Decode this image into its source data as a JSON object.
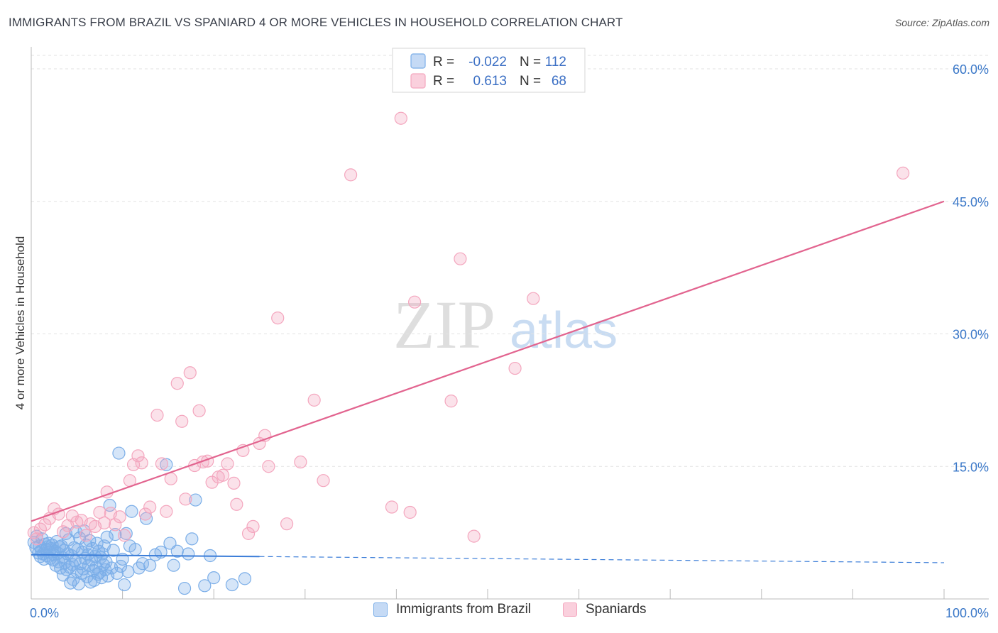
{
  "header": {
    "title": "IMMIGRANTS FROM BRAZIL VS SPANIARD 4 OR MORE VEHICLES IN HOUSEHOLD CORRELATION CHART",
    "source": "Source: ZipAtlas.com"
  },
  "watermark": {
    "zip": "ZIP",
    "atlas": "atlas"
  },
  "chart_data": {
    "type": "scatter",
    "ylabel": "4 or more Vehicles in Household",
    "xlim": [
      0,
      100
    ],
    "ylim": [
      0,
      65
    ],
    "x_tick_labels": [
      {
        "value": 0,
        "label": "0.0%"
      },
      {
        "value": 100,
        "label": "100.0%"
      }
    ],
    "y_tick_labels": [
      {
        "value": 15,
        "label": "15.0%"
      },
      {
        "value": 30,
        "label": "30.0%"
      },
      {
        "value": 45,
        "label": "45.0%"
      },
      {
        "value": 60,
        "label": "60.0%"
      }
    ],
    "legend": [
      {
        "r_label": "R =",
        "r_value": "-0.022",
        "n_label": "N =",
        "n_value": "112"
      },
      {
        "r_label": "R =",
        "r_value": "0.613",
        "n_label": "N =",
        "n_value": "68"
      }
    ],
    "series": [
      {
        "name": "Immigrants from Brazil",
        "color": "#7baee8",
        "line_color": "#3b7dd8",
        "trend": {
          "x0": 0,
          "y0": 5.0,
          "x1": 25,
          "y1": 4.8,
          "dash_x1": 100,
          "dash_y1": 4.1
        },
        "points": [
          [
            0.3,
            6.4
          ],
          [
            0.5,
            5.8
          ],
          [
            0.6,
            7.1
          ],
          [
            0.8,
            5.2
          ],
          [
            0.9,
            6.0
          ],
          [
            1.0,
            4.8
          ],
          [
            1.1,
            5.5
          ],
          [
            1.2,
            6.8
          ],
          [
            1.3,
            5.1
          ],
          [
            1.4,
            4.5
          ],
          [
            1.5,
            6.2
          ],
          [
            1.6,
            5.6
          ],
          [
            1.7,
            4.9
          ],
          [
            1.8,
            5.9
          ],
          [
            1.9,
            6.3
          ],
          [
            2.0,
            5.3
          ],
          [
            2.1,
            4.6
          ],
          [
            2.2,
            5.7
          ],
          [
            2.3,
            6.1
          ],
          [
            2.4,
            4.4
          ],
          [
            2.5,
            5.0
          ],
          [
            2.6,
            5.4
          ],
          [
            2.7,
            3.8
          ],
          [
            2.8,
            6.5
          ],
          [
            2.9,
            5.2
          ],
          [
            3.0,
            4.2
          ],
          [
            3.1,
            5.9
          ],
          [
            3.2,
            3.5
          ],
          [
            3.3,
            6.0
          ],
          [
            3.4,
            4.7
          ],
          [
            3.5,
            2.7
          ],
          [
            3.6,
            5.5
          ],
          [
            3.7,
            4.1
          ],
          [
            3.8,
            7.4
          ],
          [
            3.9,
            3.3
          ],
          [
            4.0,
            5.1
          ],
          [
            4.1,
            6.7
          ],
          [
            4.2,
            3.6
          ],
          [
            4.3,
            1.8
          ],
          [
            4.4,
            4.9
          ],
          [
            4.5,
            3.9
          ],
          [
            4.6,
            2.2
          ],
          [
            4.7,
            5.8
          ],
          [
            4.8,
            4.3
          ],
          [
            4.9,
            7.6
          ],
          [
            5.0,
            3.1
          ],
          [
            5.1,
            5.6
          ],
          [
            5.2,
            1.7
          ],
          [
            5.3,
            6.9
          ],
          [
            5.4,
            4.0
          ],
          [
            5.5,
            2.9
          ],
          [
            5.6,
            5.3
          ],
          [
            5.7,
            3.4
          ],
          [
            5.8,
            7.7
          ],
          [
            5.9,
            4.6
          ],
          [
            6.0,
            6.1
          ],
          [
            6.1,
            2.5
          ],
          [
            6.2,
            5.0
          ],
          [
            6.3,
            3.8
          ],
          [
            6.4,
            6.6
          ],
          [
            6.5,
            1.9
          ],
          [
            6.6,
            4.4
          ],
          [
            6.7,
            5.7
          ],
          [
            6.8,
            3.2
          ],
          [
            6.9,
            2.1
          ],
          [
            7.0,
            4.8
          ],
          [
            7.1,
            3.6
          ],
          [
            7.2,
            6.3
          ],
          [
            7.3,
            2.8
          ],
          [
            7.4,
            5.4
          ],
          [
            7.5,
            3.0
          ],
          [
            7.6,
            4.7
          ],
          [
            7.7,
            2.4
          ],
          [
            7.8,
            5.1
          ],
          [
            7.9,
            3.9
          ],
          [
            8.0,
            6.0
          ],
          [
            8.1,
            3.3
          ],
          [
            8.2,
            4.2
          ],
          [
            8.3,
            7.0
          ],
          [
            8.4,
            2.6
          ],
          [
            8.6,
            10.6
          ],
          [
            8.8,
            3.5
          ],
          [
            9.0,
            5.5
          ],
          [
            9.2,
            7.3
          ],
          [
            9.4,
            2.9
          ],
          [
            9.6,
            16.5
          ],
          [
            9.8,
            3.7
          ],
          [
            10.0,
            4.5
          ],
          [
            10.2,
            1.6
          ],
          [
            10.4,
            7.4
          ],
          [
            10.6,
            3.1
          ],
          [
            10.8,
            6.0
          ],
          [
            11.0,
            9.9
          ],
          [
            11.4,
            5.6
          ],
          [
            11.8,
            3.5
          ],
          [
            12.2,
            4.0
          ],
          [
            12.6,
            9.1
          ],
          [
            13.0,
            3.8
          ],
          [
            13.6,
            5.0
          ],
          [
            14.2,
            5.3
          ],
          [
            14.8,
            15.2
          ],
          [
            15.2,
            6.3
          ],
          [
            15.6,
            3.8
          ],
          [
            16.0,
            5.4
          ],
          [
            16.8,
            1.2
          ],
          [
            17.2,
            5.1
          ],
          [
            17.6,
            6.8
          ],
          [
            18.0,
            11.2
          ],
          [
            19.0,
            1.5
          ],
          [
            19.6,
            4.9
          ],
          [
            20.0,
            2.4
          ],
          [
            22.0,
            1.6
          ],
          [
            23.4,
            2.3
          ]
        ]
      },
      {
        "name": "Spaniards",
        "color": "#f4a6be",
        "line_color": "#e2648f",
        "trend": {
          "x0": 0,
          "y0": 8.8,
          "x1": 100,
          "y1": 45.0
        },
        "points": [
          [
            0.3,
            7.5
          ],
          [
            0.6,
            6.8
          ],
          [
            1.0,
            7.9
          ],
          [
            1.5,
            8.4
          ],
          [
            2.0,
            9.1
          ],
          [
            2.5,
            10.2
          ],
          [
            3.0,
            9.6
          ],
          [
            3.5,
            7.6
          ],
          [
            4.0,
            8.3
          ],
          [
            4.5,
            9.4
          ],
          [
            5.0,
            8.7
          ],
          [
            5.5,
            8.9
          ],
          [
            6.0,
            7.2
          ],
          [
            6.5,
            8.5
          ],
          [
            7.0,
            8.2
          ],
          [
            7.5,
            9.8
          ],
          [
            8.0,
            8.6
          ],
          [
            8.3,
            12.1
          ],
          [
            8.7,
            9.7
          ],
          [
            9.2,
            8.4
          ],
          [
            9.7,
            9.3
          ],
          [
            10.2,
            7.2
          ],
          [
            10.8,
            13.4
          ],
          [
            11.2,
            15.2
          ],
          [
            11.7,
            16.2
          ],
          [
            12.1,
            15.4
          ],
          [
            12.5,
            9.6
          ],
          [
            13.0,
            10.4
          ],
          [
            13.8,
            20.8
          ],
          [
            14.3,
            15.3
          ],
          [
            14.8,
            9.9
          ],
          [
            15.3,
            13.6
          ],
          [
            16.0,
            24.4
          ],
          [
            16.5,
            20.1
          ],
          [
            16.9,
            11.3
          ],
          [
            17.4,
            25.6
          ],
          [
            17.9,
            15.1
          ],
          [
            18.4,
            21.3
          ],
          [
            18.8,
            15.5
          ],
          [
            19.3,
            15.6
          ],
          [
            19.8,
            13.2
          ],
          [
            20.5,
            13.8
          ],
          [
            21.0,
            14.0
          ],
          [
            21.5,
            15.3
          ],
          [
            22.2,
            13.1
          ],
          [
            22.5,
            10.7
          ],
          [
            23.2,
            16.8
          ],
          [
            23.8,
            7.4
          ],
          [
            24.3,
            8.2
          ],
          [
            25.0,
            17.6
          ],
          [
            25.6,
            18.5
          ],
          [
            26.0,
            15.0
          ],
          [
            27.0,
            31.8
          ],
          [
            28.0,
            8.5
          ],
          [
            29.5,
            15.5
          ],
          [
            31.0,
            22.5
          ],
          [
            32.0,
            13.4
          ],
          [
            35.0,
            48.0
          ],
          [
            39.5,
            10.4
          ],
          [
            40.5,
            54.4
          ],
          [
            41.5,
            9.8
          ],
          [
            42.0,
            33.6
          ],
          [
            46.0,
            22.4
          ],
          [
            47.0,
            38.5
          ],
          [
            48.5,
            7.1
          ],
          [
            53.0,
            26.1
          ],
          [
            55.0,
            34.0
          ],
          [
            95.5,
            48.2
          ]
        ]
      }
    ]
  }
}
